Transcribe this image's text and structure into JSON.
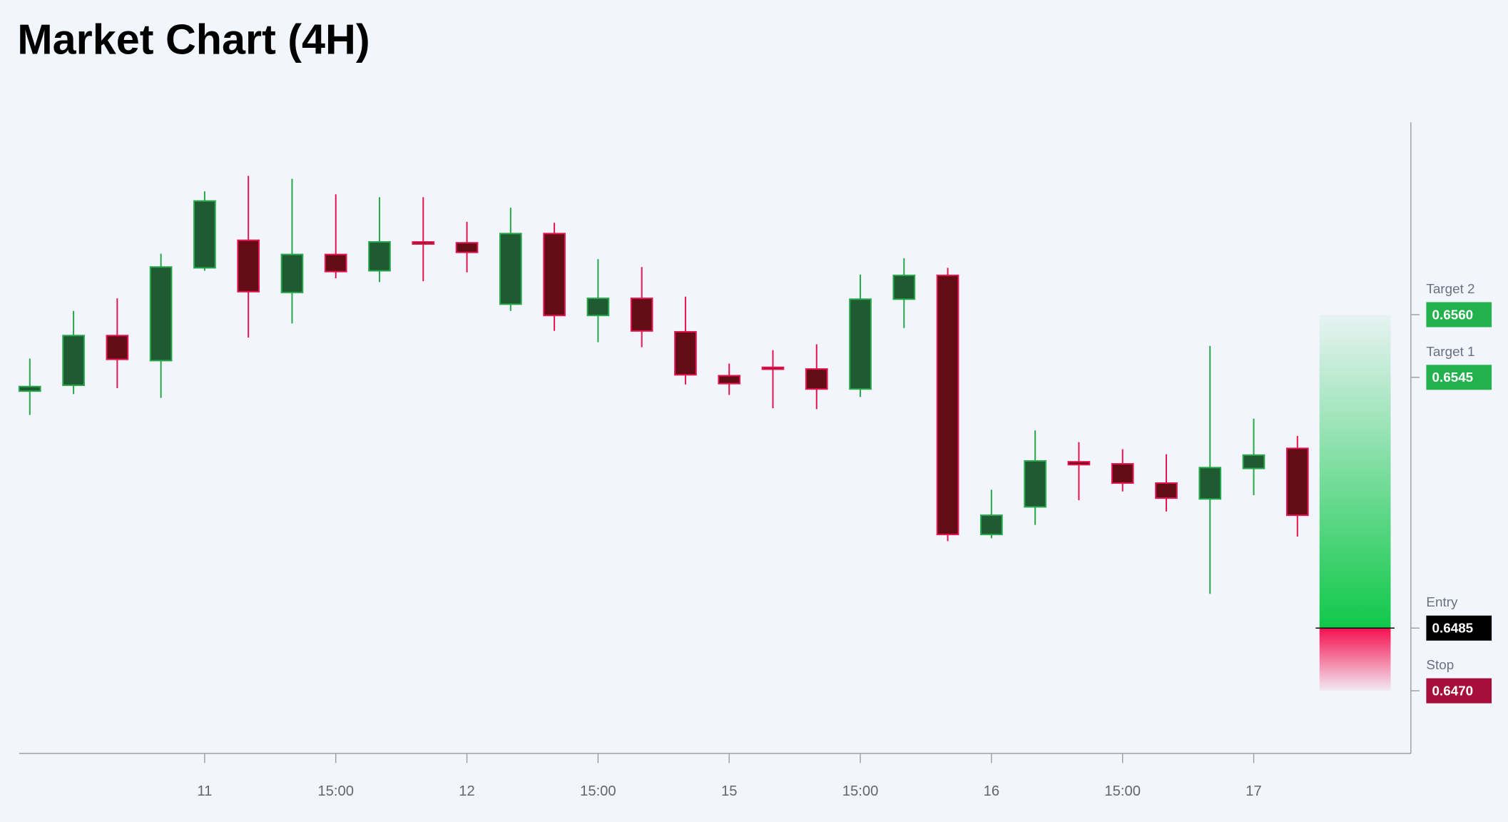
{
  "chart_data": {
    "type": "candlestick",
    "title": "Market Chart (4H)",
    "categories": [
      null,
      null,
      null,
      null,
      "11",
      null,
      null,
      "15:00",
      null,
      null,
      "12",
      null,
      null,
      "15:00",
      null,
      null,
      "15",
      null,
      null,
      "15:00",
      null,
      null,
      "16",
      null,
      null,
      "15:00",
      null,
      null,
      "17",
      null
    ],
    "open": [
      0.65417,
      0.65431,
      0.6555,
      0.6549,
      0.65712,
      0.65778,
      0.65653,
      0.65744,
      0.65705,
      0.65774,
      0.65772,
      0.65625,
      0.65794,
      0.65598,
      0.65639,
      0.65559,
      0.65454,
      0.65474,
      0.6547,
      0.65422,
      0.65637,
      0.65694,
      0.65074,
      0.6514,
      0.65248,
      0.65243,
      0.65197,
      0.65159,
      0.65232,
      0.6528
    ],
    "high": [
      0.65495,
      0.65609,
      0.65639,
      0.65746,
      0.65895,
      0.65932,
      0.65925,
      0.65888,
      0.65881,
      0.65881,
      0.65822,
      0.65856,
      0.6582,
      0.65733,
      0.65714,
      0.65643,
      0.65483,
      0.65515,
      0.65529,
      0.65696,
      0.65735,
      0.65712,
      0.65181,
      0.65323,
      0.65295,
      0.65278,
      0.65266,
      0.65525,
      0.65351,
      0.6531
    ],
    "low": [
      0.6536,
      0.6541,
      0.65424,
      0.65401,
      0.65705,
      0.65545,
      0.65579,
      0.65687,
      0.65678,
      0.6568,
      0.65701,
      0.65609,
      0.65561,
      0.65534,
      0.65522,
      0.65433,
      0.65408,
      0.65376,
      0.65374,
      0.65403,
      0.65568,
      0.65058,
      0.65065,
      0.65097,
      0.65156,
      0.65177,
      0.65129,
      0.64932,
      0.65168,
      0.65069
    ],
    "close": [
      0.65428,
      0.6555,
      0.65493,
      0.65714,
      0.65872,
      0.65655,
      0.65744,
      0.65703,
      0.65774,
      0.65769,
      0.65749,
      0.65794,
      0.65598,
      0.65639,
      0.65561,
      0.65456,
      0.65435,
      0.6547,
      0.65422,
      0.65637,
      0.65694,
      0.65074,
      0.6512,
      0.6525,
      0.65241,
      0.65197,
      0.65161,
      0.65234,
      0.65264,
      0.6512
    ],
    "up_color": "#1f5a32",
    "up_edge": "#27a84a",
    "down_color": "#640c16",
    "down_edge": "#e3174f",
    "ylim": [
      0.6455,
      0.6606
    ],
    "levels": [
      {
        "name": "Target 2",
        "value": 0.656,
        "label": "0.6560",
        "color": "#22b14c"
      },
      {
        "name": "Target 1",
        "value": 0.6545,
        "label": "0.6545",
        "color": "#22b14c"
      },
      {
        "name": "Entry",
        "value": 0.6485,
        "label": "0.6485",
        "color": "#000000"
      },
      {
        "name": "Stop",
        "value": 0.647,
        "label": "0.6470",
        "color": "#a50f3a"
      }
    ]
  }
}
